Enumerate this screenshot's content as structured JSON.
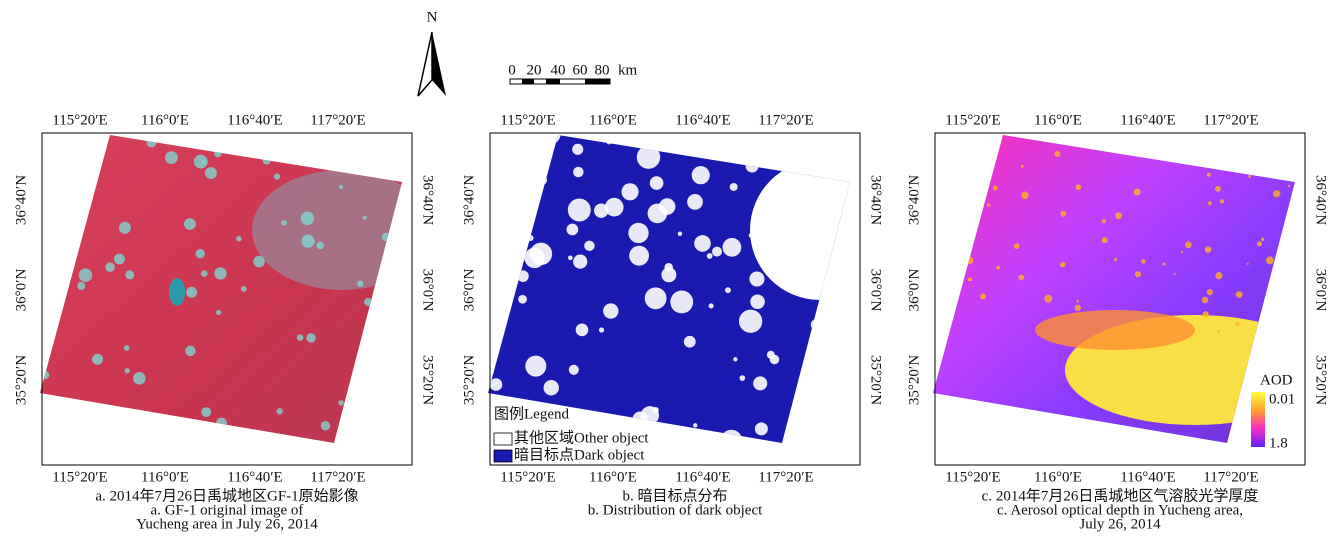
{
  "north_arrow": {
    "label": "N"
  },
  "scale_bar": {
    "labels": [
      "0",
      "20",
      "40",
      "60",
      "80"
    ],
    "unit": "km"
  },
  "panels": [
    {
      "x_ticks": [
        "115°20′E",
        "116°0′E",
        "116°40′E",
        "117°20′E"
      ],
      "y_ticks_left": [
        "36°40′N",
        "36°0′N",
        "35°20′N"
      ],
      "y_ticks_right": [
        "36°40′N",
        "36°0′N",
        "35°20′N"
      ],
      "caption": [
        "a. 2014年7月26日禹城地区GF-1原始影像",
        "a. GF-1 original image of",
        "Yucheng area in July 26, 2014"
      ]
    },
    {
      "x_ticks": [
        "115°20′E",
        "116°0′E",
        "116°40′E",
        "117°20′E"
      ],
      "y_ticks_left": [
        "36°40′N",
        "36°0′N",
        "35°20′N"
      ],
      "y_ticks_right": [
        "36°40′N",
        "36°0′N",
        "35°20′N"
      ],
      "caption": [
        "b. 暗目标点分布",
        "b. Distribution of dark object"
      ],
      "legend": {
        "title": "图例Legend",
        "items": [
          "其他区域Other object",
          "暗目标点Dark object"
        ]
      }
    },
    {
      "x_ticks": [
        "115°20′E",
        "116°0′E",
        "116°40′E",
        "117°20′E"
      ],
      "y_ticks_left": [
        "36°40′N",
        "36°0′N",
        "35°20′N"
      ],
      "y_ticks_right": [
        "36°40′N",
        "36°0′N",
        "35°20′N"
      ],
      "caption": [
        "c. 2014年7月26日禹城地区气溶胶光学厚度",
        "c. Aerosol optical depth in Yucheng area,",
        "July 26, 2014"
      ],
      "colorbar": {
        "title": "AOD",
        "top": "0.01",
        "bottom": "1.8"
      }
    }
  ]
}
